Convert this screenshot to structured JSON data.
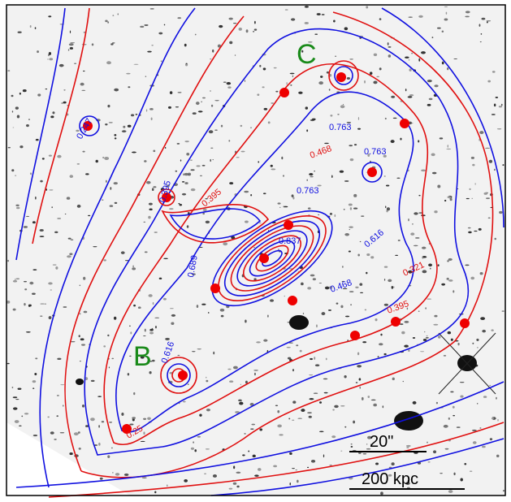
{
  "labels": {
    "c": "C",
    "b": "B"
  },
  "scale_bar": {
    "angular": "20\"",
    "physical": "200 kpc"
  },
  "blue_contour_labels": [
    "0.247",
    "0.395",
    "0.763",
    "0.763",
    "0.763",
    "0.837",
    "0.689",
    "0.616",
    "0.468",
    "0.616"
  ],
  "red_contour_labels": [
    "0.468",
    "0.395",
    "0.321",
    "0.395",
    "0.25"
  ]
}
